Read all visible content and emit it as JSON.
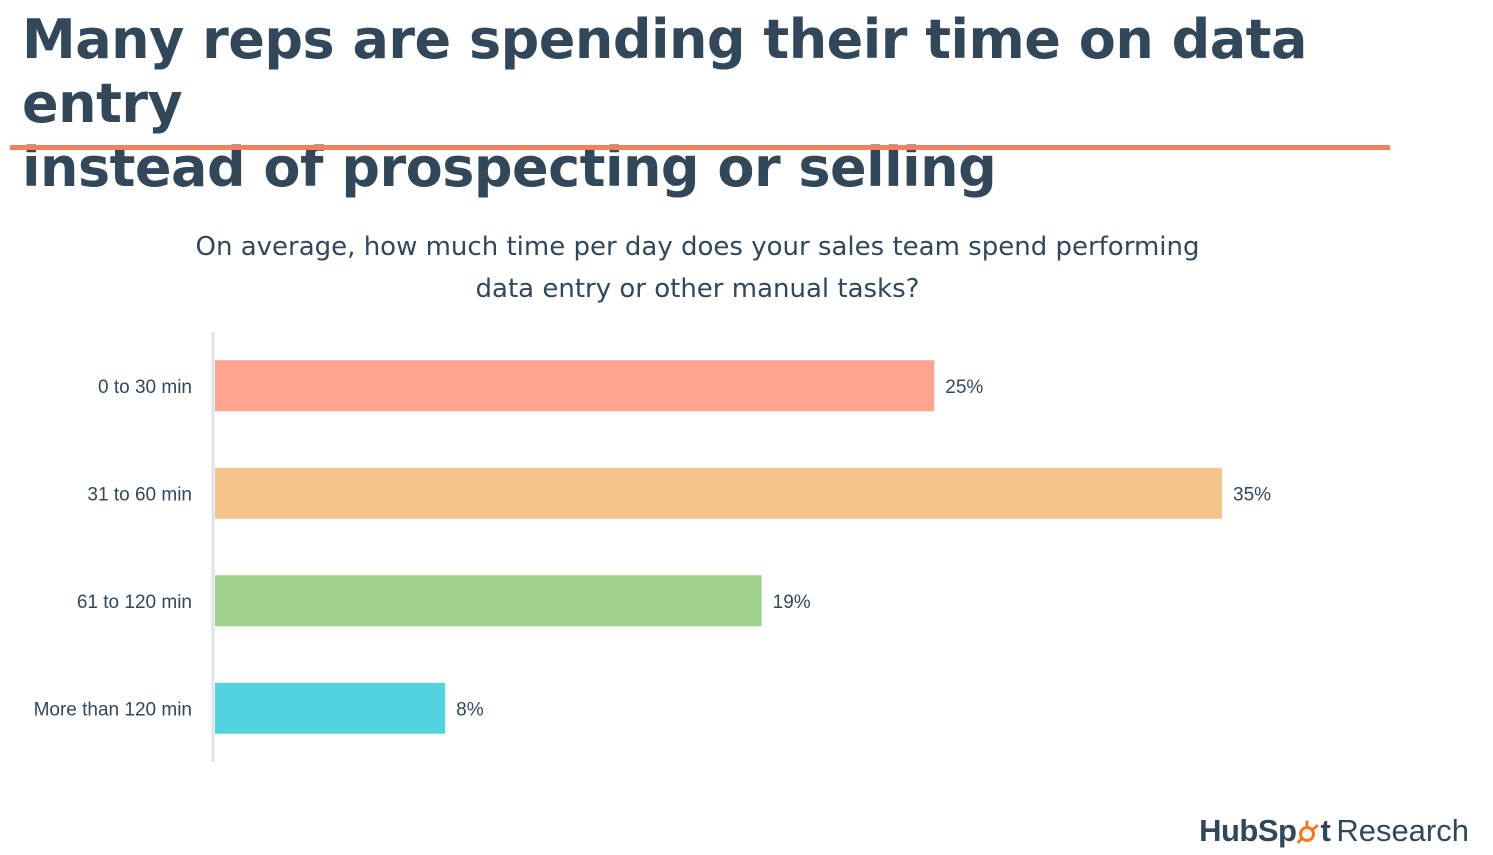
{
  "title": {
    "line1": "Many reps are spending their time on data entry",
    "line2": "instead of prospecting or selling"
  },
  "question": {
    "line1": "On average, how much time per day does your sales team spend performing",
    "line2": "data entry or other manual tasks?"
  },
  "colors": {
    "title_text": "#33475b",
    "accent_rule": "#f2805f",
    "axis_line": "#dfe3e8",
    "label_text": "#33475b"
  },
  "chart_data": {
    "type": "bar",
    "orientation": "horizontal",
    "categories": [
      "0 to 30 min",
      "31 to 60 min",
      "61 to 120 min",
      "More than 120 min"
    ],
    "values": [
      25,
      35,
      19,
      8
    ],
    "value_labels": [
      "25%",
      "35%",
      "19%",
      "8%"
    ],
    "bar_colors": [
      "#ffa48e",
      "#f2c58d",
      "#a0d28d",
      "#53d3dd"
    ],
    "xlim": [
      0,
      35
    ],
    "grid": false,
    "legend": "none"
  },
  "brand": {
    "hub": "Hub",
    "spot_s": "Sp",
    "spot_t": "t",
    "research": "Research",
    "icon": "sprocket-icon"
  }
}
